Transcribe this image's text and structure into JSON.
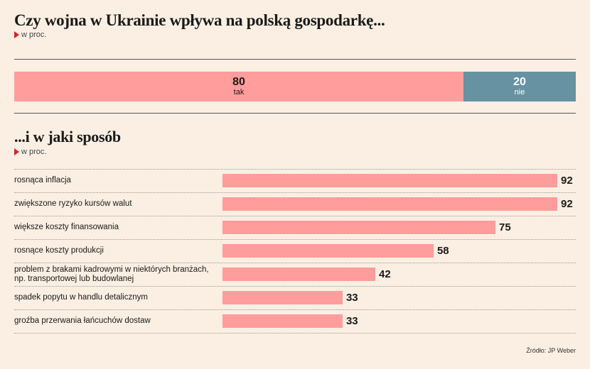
{
  "title": "Czy wojna w Ukrainie wpływa na polską gospodarkę...",
  "unit_label": "w proc.",
  "subtitle": "...i w jaki sposób",
  "subtitle_unit_label": "w proc.",
  "source": "Źródło: JP Weber",
  "colors": {
    "bar": "#ff9d9c",
    "no": "#6792a1",
    "background": "#fbefe3",
    "marker": "#d8232a"
  },
  "chart_data": [
    {
      "type": "bar",
      "orientation": "horizontal-stacked",
      "title": "Czy wojna w Ukrainie wpływa na polską gospodarkę...",
      "unit": "w proc.",
      "categories": [
        "tak",
        "nie"
      ],
      "values": [
        80,
        20
      ],
      "colors": [
        "#ff9d9c",
        "#6792a1"
      ]
    },
    {
      "type": "bar",
      "orientation": "horizontal",
      "title": "...i w jaki sposób",
      "unit": "w proc.",
      "xlim": [
        0,
        100
      ],
      "categories": [
        "rosnąca inflacja",
        "zwiększone ryzyko kursów walut",
        "większe koszty finansowania",
        "rosnące koszty produkcji",
        "problem z brakami kadrowymi w niektórych branżach, np. transportowej lub budowlanej",
        "spadek popytu w handlu detalicznym",
        "groźba przerwania łańcuchów dostaw"
      ],
      "values": [
        92,
        92,
        75,
        58,
        42,
        33,
        33
      ]
    }
  ]
}
